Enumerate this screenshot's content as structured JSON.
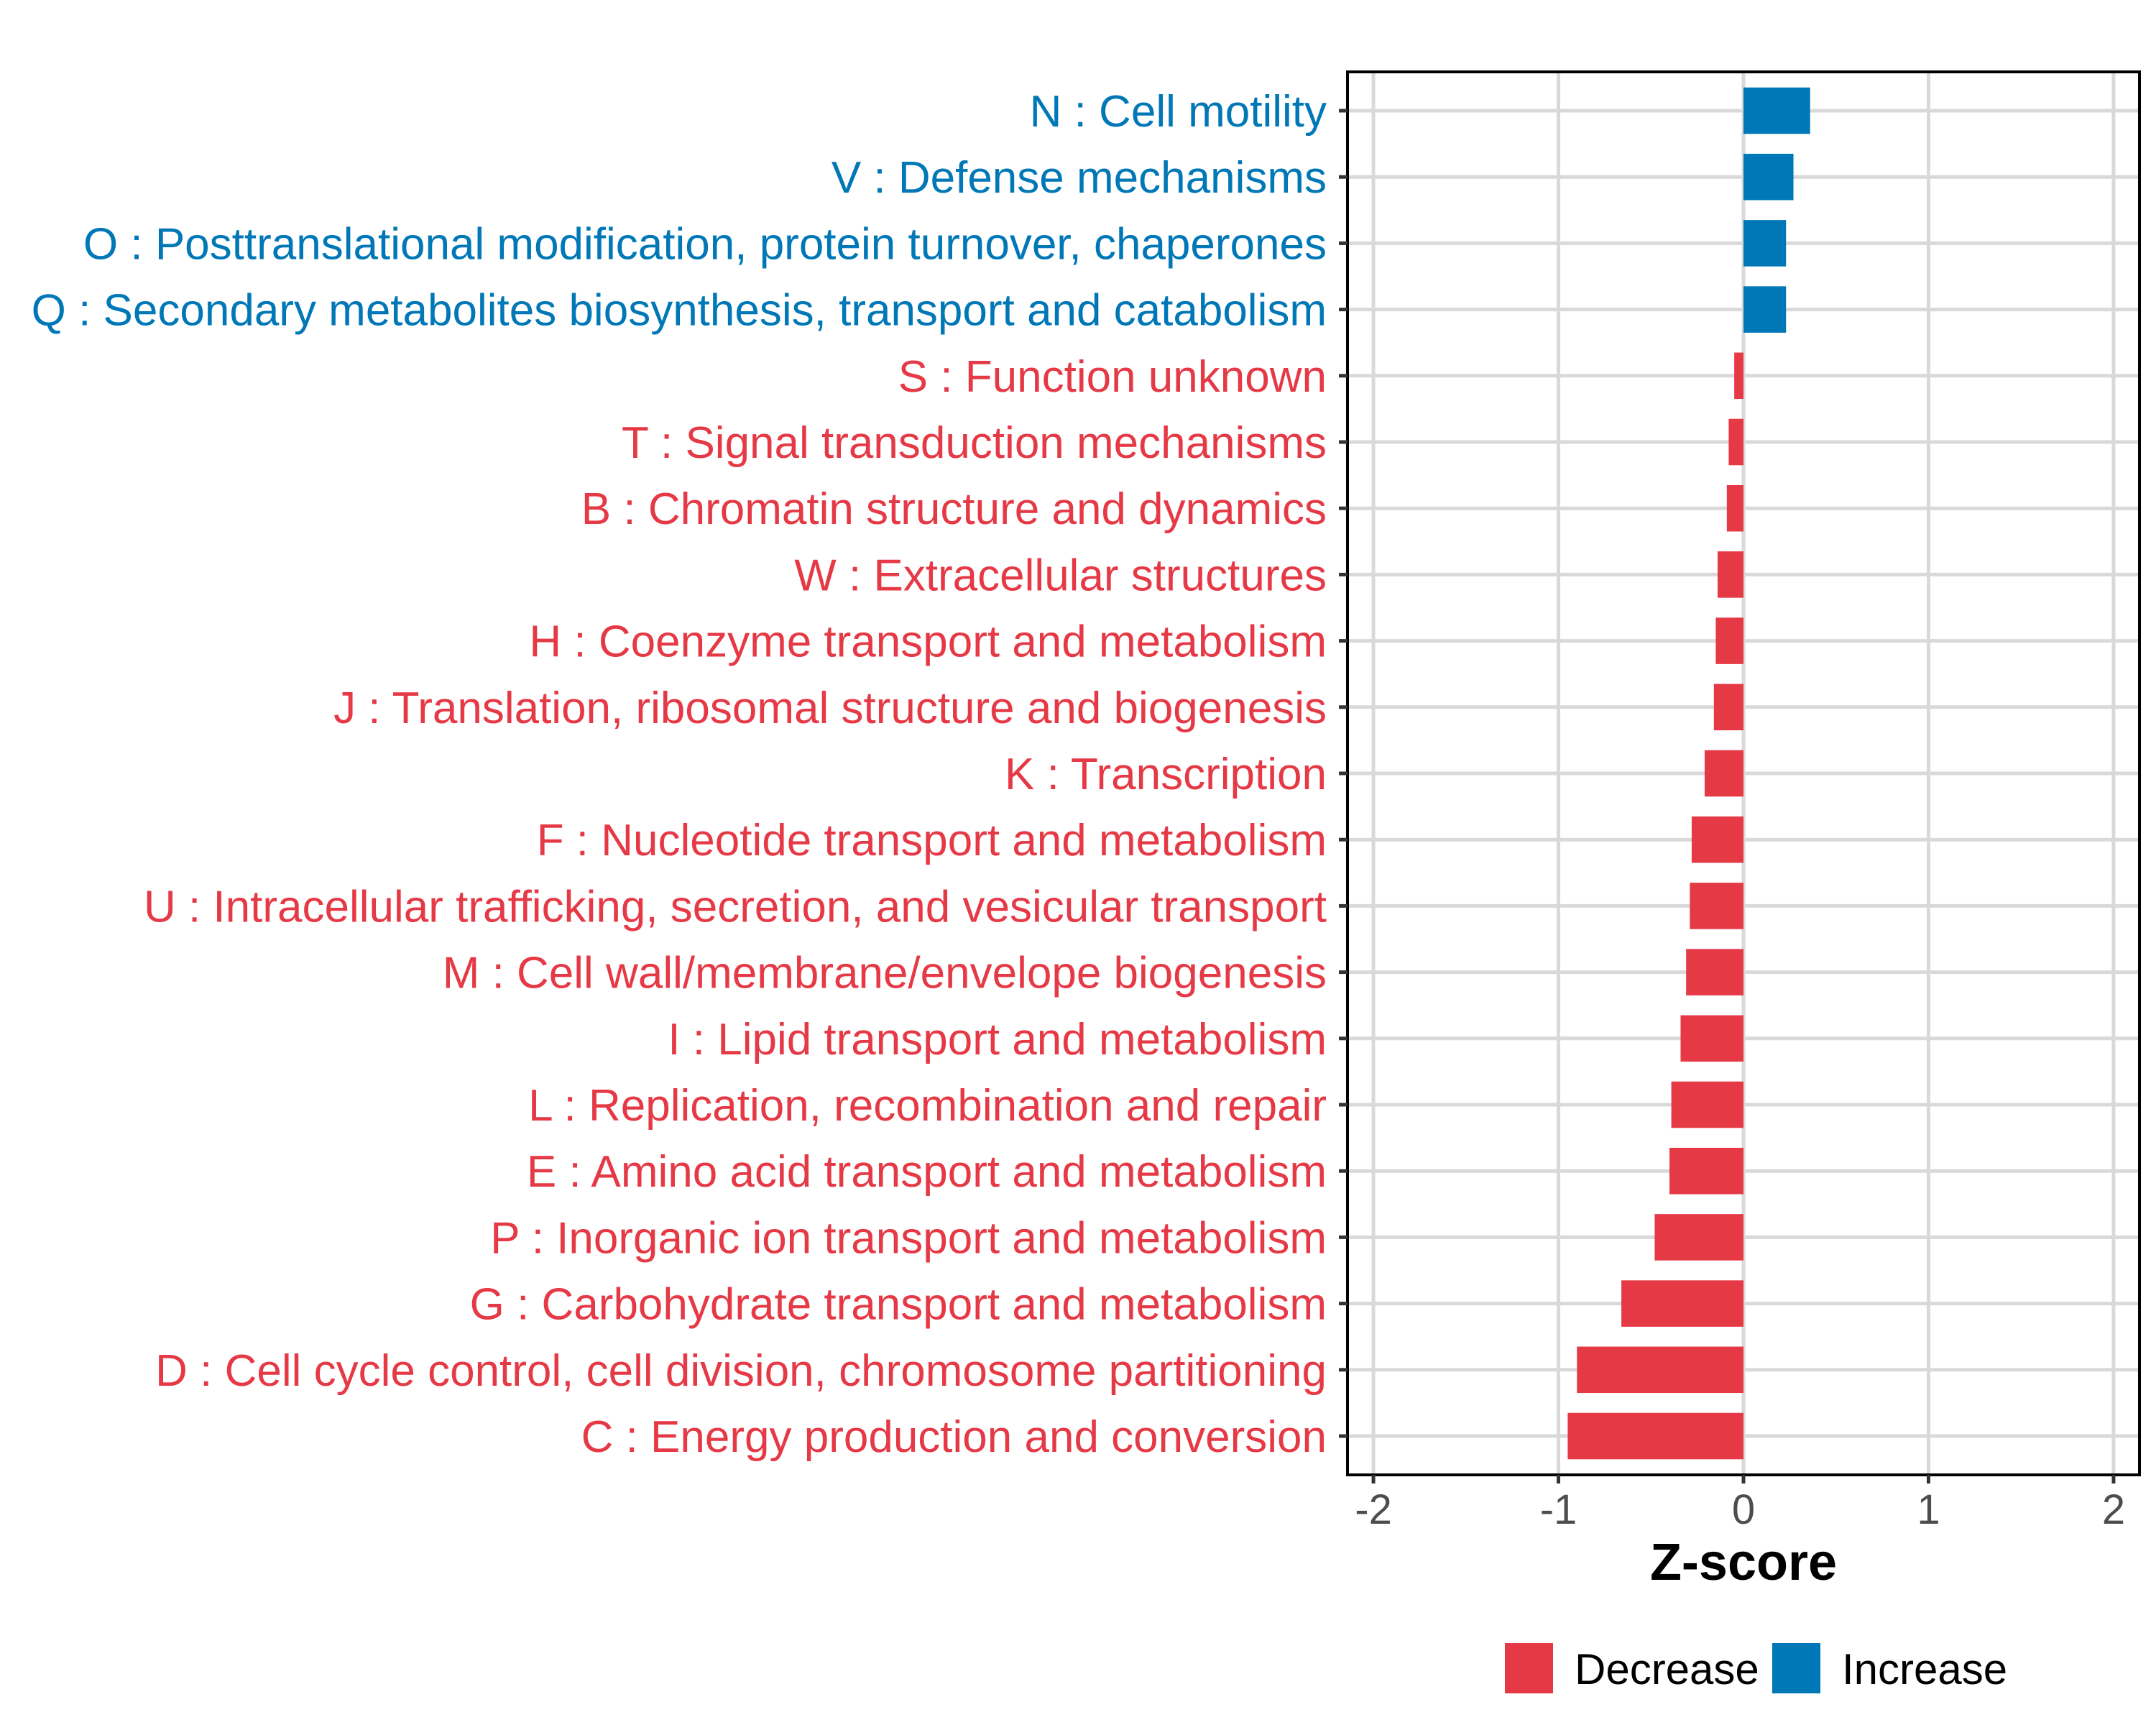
{
  "chart_data": {
    "type": "bar",
    "orientation": "horizontal",
    "title": "",
    "xlabel": "Z-score",
    "ylabel": "",
    "xlim": [
      -2.14,
      2.14
    ],
    "x_ticks": [
      -2,
      -1,
      0,
      1,
      2
    ],
    "x_tick_labels": [
      "-2",
      "-1",
      "0",
      "1",
      "2"
    ],
    "grid": true,
    "legend_position": "bottom",
    "colors": {
      "Decrease": "#E63946",
      "Increase": "#0077B6"
    },
    "legend": [
      {
        "label": "Decrease",
        "color": "#E63946"
      },
      {
        "label": "Increase",
        "color": "#0077B6"
      }
    ],
    "categories": [
      "N : Cell motility",
      "V : Defense mechanisms",
      "O : Posttranslational modification, protein turnover, chaperones",
      "Q : Secondary metabolites biosynthesis, transport and catabolism",
      "S : Function unknown",
      "T : Signal transduction mechanisms",
      "B : Chromatin structure and dynamics",
      "W : Extracellular structures",
      "H : Coenzyme transport and metabolism",
      "J : Translation, ribosomal structure and biogenesis",
      "K : Transcription",
      "F : Nucleotide transport and metabolism",
      "U : Intracellular trafficking, secretion, and vesicular transport",
      "M : Cell wall/membrane/envelope biogenesis",
      "I : Lipid transport and metabolism",
      "L : Replication, recombination and repair",
      "E : Amino acid transport and metabolism",
      "P : Inorganic ion transport and metabolism",
      "G : Carbohydrate transport and metabolism",
      "D : Cell cycle control, cell division, chromosome partitioning",
      "C : Energy production and conversion"
    ],
    "values": [
      0.36,
      0.27,
      0.23,
      0.23,
      -0.05,
      -0.08,
      -0.09,
      -0.14,
      -0.15,
      -0.16,
      -0.21,
      -0.28,
      -0.29,
      -0.31,
      -0.34,
      -0.39,
      -0.4,
      -0.48,
      -0.66,
      -0.9,
      -0.95
    ],
    "direction": [
      "Increase",
      "Increase",
      "Increase",
      "Increase",
      "Decrease",
      "Decrease",
      "Decrease",
      "Decrease",
      "Decrease",
      "Decrease",
      "Decrease",
      "Decrease",
      "Decrease",
      "Decrease",
      "Decrease",
      "Decrease",
      "Decrease",
      "Decrease",
      "Decrease",
      "Decrease",
      "Decrease"
    ]
  }
}
